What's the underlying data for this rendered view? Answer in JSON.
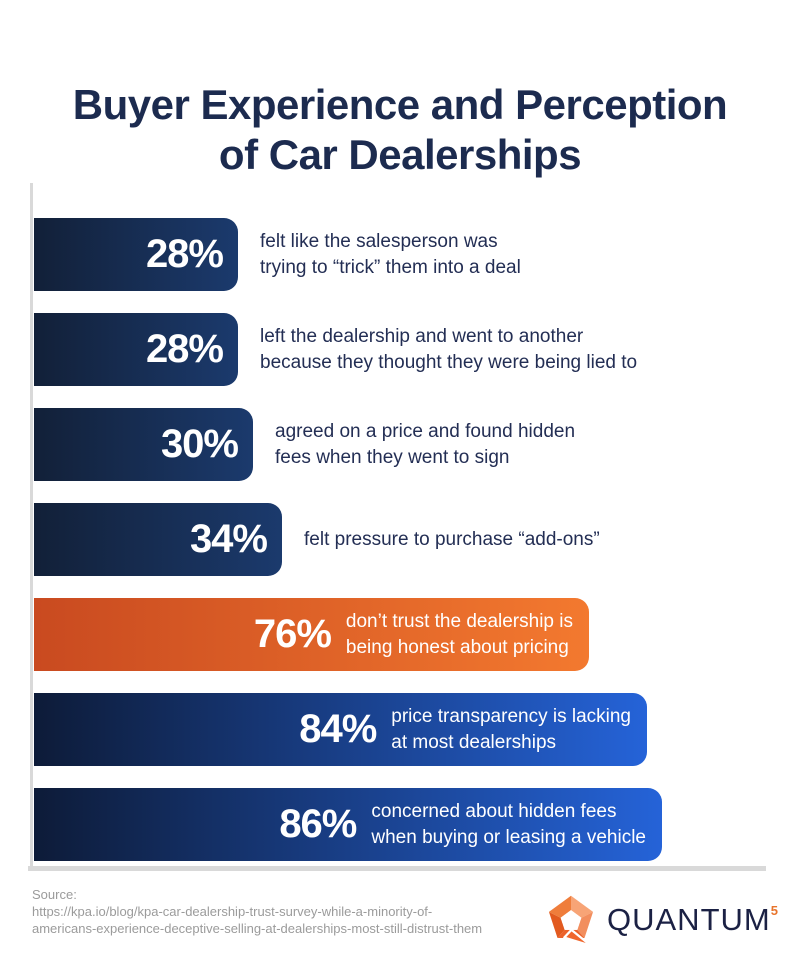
{
  "title": "Buyer Experience and Perception\nof Car Dealerships",
  "colors": {
    "title_navy": "#1c2b4f",
    "text_navy": "#232e54",
    "navy_dark": "#122038",
    "navy_mid": "#1b3a6d",
    "blue_deep": "#0d1b38",
    "blue_bright": "#2563d8",
    "orange_dark": "#c94a20",
    "orange_bright": "#f3792f",
    "axis_gray": "#d9d9d9",
    "source_gray": "#9b9b9b",
    "logo_navy": "#1b2144",
    "logo_orange": "#e8742c"
  },
  "chart_data": {
    "type": "bar",
    "orientation": "horizontal",
    "unit": "%",
    "title": "Buyer Experience and Perception of Car Dealerships",
    "xlim": [
      0,
      100
    ],
    "grid": false,
    "legend": "none",
    "bars": [
      {
        "value": 28,
        "display": "28%",
        "description": "felt like the salesperson was\ntrying to “trick” them into a deal",
        "theme": "navy",
        "text_inside": false
      },
      {
        "value": 28,
        "display": "28%",
        "description": "left the dealership and went to another\nbecause they thought they were being lied to",
        "theme": "navy",
        "text_inside": false
      },
      {
        "value": 30,
        "display": "30%",
        "description": "agreed on a price and found hidden\nfees when they went to sign",
        "theme": "navy",
        "text_inside": false
      },
      {
        "value": 34,
        "display": "34%",
        "description": "felt pressure to purchase “add-ons”",
        "theme": "navy",
        "text_inside": false
      },
      {
        "value": 76,
        "display": "76%",
        "description": "don’t trust the dealership is\nbeing honest about pricing",
        "theme": "orange",
        "text_inside": true
      },
      {
        "value": 84,
        "display": "84%",
        "description": "price transparency is lacking\nat most dealerships",
        "theme": "blue",
        "text_inside": true
      },
      {
        "value": 86,
        "display": "86%",
        "description": "concerned about hidden fees\nwhen buying or leasing a vehicle",
        "theme": "blue",
        "text_inside": true
      }
    ]
  },
  "source": {
    "prefix": "Source:",
    "lines": [
      "https://kpa.io/blog/kpa-car-dealership-trust-survey-while-a-minority-of-",
      "americans-experience-deceptive-selling-at-dealerships-most-still-distrust-them"
    ]
  },
  "logo": {
    "brand": "QUANTUM",
    "superscript": "5"
  }
}
